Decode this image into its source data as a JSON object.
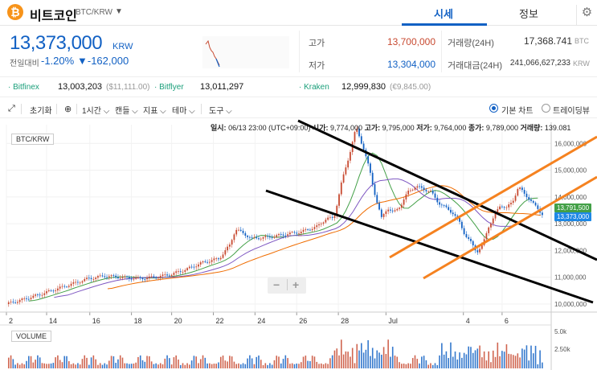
{
  "header": {
    "coin_logo": "₿",
    "coin_name": "비트코인",
    "coin_pair": "BTC/KRW",
    "tabs": [
      {
        "label": "시세",
        "active": true
      },
      {
        "label": "정보",
        "active": false
      }
    ],
    "icons": {
      "caret": "chevron-down-icon",
      "settings": "gear-icon"
    }
  },
  "price": {
    "current": "13,373,000",
    "unit": "KRW",
    "change_label": "전일대비",
    "change_pct": "-1.20%",
    "change_abs": "▼-162,000",
    "color_down": "#1261c4",
    "color_up": "#c84a31"
  },
  "stats": {
    "high_label": "고가",
    "high": "13,700,000",
    "low_label": "저가",
    "low": "13,304,000",
    "vol_label": "거래량(24H)",
    "vol": "17,368.741",
    "vol_unit": "BTC",
    "amt_label": "거래대금(24H)",
    "amt": "241,066,627,233",
    "amt_unit": "KRW"
  },
  "exchanges": [
    {
      "name": "· Bitfinex",
      "price": "13,003,203",
      "note": "($11,111.00)"
    },
    {
      "name": "· Bitflyer",
      "price": "13,011,297",
      "note": ""
    },
    {
      "name": "· Kraken",
      "price": "12,999,830",
      "note": "(€9,845.00)"
    }
  ],
  "toolbar": {
    "reset": "초기화",
    "interval": "1시간",
    "candle": "캔들",
    "indicator": "지표",
    "theme": "테마",
    "tools": "도구",
    "chart_basic": "기본 차트",
    "chart_tv": "트레이딩뷰",
    "chart_basic_selected": true,
    "icons": {
      "expand": "expand-icon",
      "globe": "globe-icon",
      "chevron": "⌵"
    }
  },
  "chart_data": {
    "type": "candlestick",
    "title": "BTC/KRW",
    "ohlc_info": {
      "time_label": "일시:",
      "time": "06/13 23:00 (UTC+09:00)",
      "open_label": "시가:",
      "open": "9,774,000",
      "high_label": "고가:",
      "high": "9,795,000",
      "low_label": "저가:",
      "low": "9,764,000",
      "close_label": "종가:",
      "close": "9,789,000",
      "vol_label": "거래량:",
      "vol": "139.081"
    },
    "x_ticks": [
      "2",
      "14",
      "16",
      "18",
      "20",
      "22",
      "24",
      "26",
      "28",
      "Jul",
      "4",
      "6"
    ],
    "y_ticks": [
      "16,000,000",
      "15,000,000",
      "14,000,000",
      "13,000,000",
      "12,000,000",
      "11,000,000",
      "10,000,000"
    ],
    "ylim": [
      9700000,
      16700000
    ],
    "price_path": [
      [
        0,
        10.0
      ],
      [
        1.0,
        10.15
      ],
      [
        2.2,
        10.35
      ],
      [
        3.3,
        10.55
      ],
      [
        4.4,
        10.75
      ],
      [
        5.5,
        10.95
      ],
      [
        6.6,
        11.05
      ],
      [
        7.7,
        11.0
      ],
      [
        8.8,
        10.95
      ],
      [
        9.9,
        11.0
      ],
      [
        11.0,
        11.1
      ],
      [
        12.1,
        11.3
      ],
      [
        13.2,
        11.55
      ],
      [
        14.3,
        11.7
      ],
      [
        15.0,
        12.2
      ],
      [
        15.4,
        12.8
      ],
      [
        16.5,
        12.45
      ],
      [
        17.6,
        12.5
      ],
      [
        18.7,
        12.6
      ],
      [
        19.8,
        12.7
      ],
      [
        20.9,
        12.9
      ],
      [
        21.5,
        13.2
      ],
      [
        22.0,
        13.2
      ],
      [
        22.5,
        14.5
      ],
      [
        23.0,
        15.5
      ],
      [
        23.5,
        16.6
      ],
      [
        24.0,
        15.8
      ],
      [
        24.4,
        15.0
      ],
      [
        24.8,
        14.0
      ],
      [
        25.2,
        13.2
      ],
      [
        25.6,
        13.6
      ],
      [
        26.0,
        13.4
      ],
      [
        26.5,
        13.7
      ],
      [
        27.0,
        14.2
      ],
      [
        27.5,
        14.4
      ],
      [
        28.0,
        14.3
      ],
      [
        28.5,
        14.2
      ],
      [
        29.0,
        13.8
      ],
      [
        29.5,
        13.6
      ],
      [
        30.0,
        13.4
      ],
      [
        30.4,
        13.1
      ],
      [
        30.8,
        12.6
      ],
      [
        31.2,
        12.3
      ],
      [
        31.6,
        11.95
      ],
      [
        32.0,
        12.2
      ],
      [
        32.4,
        12.9
      ],
      [
        32.8,
        13.3
      ],
      [
        33.2,
        13.7
      ],
      [
        33.6,
        13.6
      ],
      [
        34.0,
        13.8
      ],
      [
        34.4,
        14.4
      ],
      [
        34.8,
        14.1
      ],
      [
        35.2,
        13.9
      ],
      [
        35.6,
        13.6
      ],
      [
        36.0,
        13.37
      ]
    ],
    "ma_lines": [
      {
        "color": "#e53935",
        "lag": 0.6
      },
      {
        "color": "#43a047",
        "lag": 2.0
      },
      {
        "color": "#7e57c2",
        "lag": 4.0
      },
      {
        "color": "#ef6c00",
        "lag": 7.0
      }
    ],
    "price_tags": [
      {
        "label": "13,791,500",
        "color": "#43a047"
      },
      {
        "label": "13,373,000",
        "color": "#1e88e5"
      }
    ],
    "volume": {
      "title": "VOLUME",
      "y_ticks": [
        "5.0k",
        "2.50k"
      ]
    }
  }
}
